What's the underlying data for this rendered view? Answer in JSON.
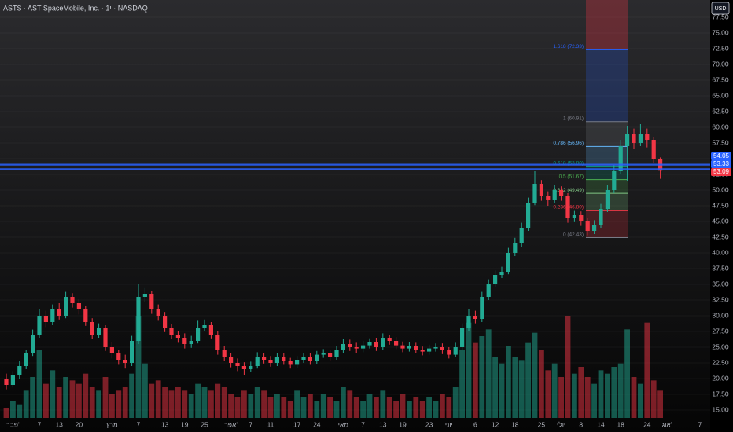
{
  "chart_data": {
    "type": "candlestick",
    "title": "ASTS · AST SpaceMobile, Inc. · 1י · NASDAQ",
    "currency": "USD",
    "up_color": "#22ab94",
    "down_color": "#f23645",
    "open": [
      20,
      19,
      20.5,
      22,
      24,
      27,
      30,
      29,
      31,
      30,
      33,
      32,
      31,
      29,
      27,
      28,
      25,
      24,
      23,
      22.5,
      26,
      33,
      33.5,
      31,
      30,
      28,
      27,
      26.5,
      25.5,
      26,
      28,
      28.5,
      27,
      24.5,
      23.5,
      22.5,
      22,
      21.5,
      22,
      23.5,
      23,
      22.5,
      23.5,
      22.8,
      22.2,
      23,
      23.5,
      22.8,
      23.8,
      24,
      23.5,
      24.5,
      25.5,
      25,
      24.8,
      25.3,
      25.8,
      25,
      26.5,
      26,
      25.3,
      24.8,
      25.2,
      24.6,
      24.3,
      24.8,
      25,
      24.5,
      23.8,
      25,
      28,
      30,
      29.5,
      33,
      35,
      36.5,
      37,
      40,
      41.5,
      44,
      48,
      51,
      49,
      48.5,
      50,
      49,
      45.5,
      46,
      45,
      43.5,
      44.5,
      47,
      50,
      53,
      57,
      59,
      57.5,
      59,
      58,
      55
    ],
    "high": [
      20.8,
      21.2,
      22.8,
      24.6,
      27.8,
      31,
      30.8,
      31.8,
      32,
      33.8,
      33.6,
      32.6,
      31.5,
      29.6,
      28.8,
      28.5,
      25.8,
      24.5,
      23.8,
      26.8,
      35,
      34.4,
      34,
      31.8,
      30.6,
      28.7,
      27.6,
      27.2,
      26.8,
      29.2,
      29.4,
      29,
      27.5,
      25.2,
      24,
      23.2,
      22.6,
      22.7,
      24.2,
      24.1,
      23.6,
      24.1,
      24,
      23.3,
      23.6,
      24.1,
      24,
      24.4,
      24.7,
      24.6,
      25.2,
      26.3,
      26.2,
      25.7,
      26,
      26.4,
      26.5,
      27.2,
      27,
      26.6,
      25.9,
      25.8,
      25.7,
      25.1,
      25.4,
      25.6,
      25.6,
      25,
      25.7,
      28.8,
      31,
      30.8,
      33.8,
      35.8,
      37.2,
      37.8,
      40.8,
      42.4,
      44.8,
      48.8,
      53,
      51.6,
      49.8,
      50.8,
      50.6,
      49.5,
      46.8,
      46.6,
      45.5,
      45.2,
      47.8,
      50.8,
      54,
      58,
      60.2,
      59.8,
      60.5,
      59.8,
      58.4,
      55.2
    ],
    "low": [
      18.3,
      18.6,
      20,
      21.5,
      23.6,
      26.5,
      28.2,
      28.5,
      29.4,
      29.6,
      31.3,
      30.2,
      28.4,
      26.3,
      26.5,
      24.4,
      23.2,
      22.2,
      21.6,
      22,
      25.5,
      32.2,
      30.3,
      29.2,
      27.4,
      26.3,
      25.7,
      24.8,
      24.9,
      25.6,
      27.5,
      26.4,
      23.8,
      22.8,
      21.8,
      21.2,
      20.6,
      21,
      21.6,
      22.4,
      21.9,
      22,
      22.2,
      21.6,
      21.7,
      22.5,
      22.2,
      22.3,
      23.3,
      22.9,
      23,
      24,
      24.4,
      24.1,
      24.2,
      24.8,
      24.4,
      24.6,
      25.4,
      24.7,
      24.2,
      24.3,
      24,
      23.7,
      23.8,
      24.3,
      23.9,
      23.2,
      23.4,
      24.6,
      27.5,
      28.8,
      29,
      32.5,
      34.6,
      36,
      36.6,
      39.5,
      41,
      43.5,
      47.6,
      48.3,
      47.5,
      47.9,
      48.3,
      44.8,
      44.9,
      44.3,
      42.8,
      43,
      44,
      46.5,
      49.5,
      52.5,
      51.5,
      56.5,
      57,
      56.8,
      54.3,
      51.8
    ],
    "close": [
      19,
      20.5,
      22,
      24,
      27,
      30,
      29,
      31,
      30,
      33,
      32,
      31,
      29,
      27,
      28,
      25,
      24,
      23,
      22.5,
      26,
      33,
      33.5,
      31,
      30,
      28,
      27,
      26.5,
      25.5,
      26,
      28,
      28.5,
      27,
      24.5,
      23.5,
      22.5,
      22,
      21.5,
      22,
      23.5,
      23,
      22.5,
      23.5,
      22.8,
      22.2,
      23,
      23.5,
      22.8,
      23.8,
      24,
      23.5,
      24.5,
      25.5,
      25,
      24.8,
      25.3,
      25.8,
      25,
      26.5,
      26,
      25.3,
      24.8,
      25.2,
      24.6,
      24.3,
      24.8,
      25,
      24.5,
      23.8,
      25,
      28,
      30,
      29.5,
      33,
      35,
      36.5,
      37,
      40,
      41.5,
      44,
      48,
      51,
      49,
      48.5,
      50,
      49,
      45.5,
      46,
      45,
      43.5,
      44.5,
      47,
      50,
      53,
      57,
      59,
      57.5,
      59,
      58,
      55,
      53.09
    ],
    "volume": [
      3,
      5,
      4,
      8,
      12,
      20,
      10,
      14,
      9,
      12,
      11,
      10,
      13,
      9,
      8,
      12,
      7,
      8,
      9,
      13,
      30,
      16,
      10,
      11,
      9,
      8,
      9,
      8,
      7,
      10,
      9,
      8,
      10,
      9,
      7,
      6,
      8,
      7,
      9,
      8,
      6,
      7,
      6,
      5,
      8,
      6,
      7,
      5,
      7,
      6,
      5,
      9,
      8,
      6,
      5,
      7,
      6,
      8,
      6,
      5,
      7,
      5,
      6,
      5,
      6,
      5,
      7,
      6,
      9,
      20,
      28,
      22,
      24,
      26,
      18,
      16,
      21,
      18,
      17,
      22,
      25,
      20,
      14,
      16,
      12,
      30,
      13,
      15,
      12,
      10,
      14,
      13,
      15,
      16,
      26,
      12,
      10,
      28,
      11,
      8
    ],
    "xticks": [
      {
        "value": 1,
        "label": "פבר'"
      },
      {
        "value": 5,
        "label": "7"
      },
      {
        "value": 8,
        "label": "13"
      },
      {
        "value": 11,
        "label": "20"
      },
      {
        "value": 16,
        "label": "מרץ"
      },
      {
        "value": 20,
        "label": "7"
      },
      {
        "value": 24,
        "label": "13"
      },
      {
        "value": 27,
        "label": "19"
      },
      {
        "value": 30,
        "label": "25"
      },
      {
        "value": 34,
        "label": "אפר'"
      },
      {
        "value": 37,
        "label": "7"
      },
      {
        "value": 40,
        "label": "11"
      },
      {
        "value": 44,
        "label": "17"
      },
      {
        "value": 47,
        "label": "24"
      },
      {
        "value": 51,
        "label": "מאי"
      },
      {
        "value": 54,
        "label": "7"
      },
      {
        "value": 57,
        "label": "13"
      },
      {
        "value": 60,
        "label": "19"
      },
      {
        "value": 64,
        "label": "23"
      },
      {
        "value": 67,
        "label": "יוני"
      },
      {
        "value": 71,
        "label": "6"
      },
      {
        "value": 74,
        "label": "12"
      },
      {
        "value": 77,
        "label": "18"
      },
      {
        "value": 81,
        "label": "25"
      },
      {
        "value": 84,
        "label": "יולי"
      },
      {
        "value": 87,
        "label": "8"
      },
      {
        "value": 90,
        "label": "14"
      },
      {
        "value": 93,
        "label": "18"
      },
      {
        "value": 97,
        "label": "24"
      },
      {
        "value": 100,
        "label": "אוג'"
      },
      {
        "value": 105,
        "label": "7"
      }
    ],
    "ylim": [
      15,
      77.5
    ],
    "yticks": [
      {
        "value": 15,
        "label": "15.00"
      },
      {
        "value": 17.5,
        "label": "17.50"
      },
      {
        "value": 20,
        "label": "20.00"
      },
      {
        "value": 22.5,
        "label": "22.50"
      },
      {
        "value": 25,
        "label": "25.00"
      },
      {
        "value": 27.5,
        "label": "27.50"
      },
      {
        "value": 30,
        "label": "30.00"
      },
      {
        "value": 32.5,
        "label": "32.50"
      },
      {
        "value": 35,
        "label": "35.00"
      },
      {
        "value": 37.5,
        "label": "37.50"
      },
      {
        "value": 40,
        "label": "40.00"
      },
      {
        "value": 42.5,
        "label": "42.50"
      },
      {
        "value": 45,
        "label": "45.00"
      },
      {
        "value": 47.5,
        "label": "47.50"
      },
      {
        "value": 50,
        "label": "50.00"
      },
      {
        "value": 52.5,
        "label": "52.50"
      },
      {
        "value": 55,
        "label": "55.00"
      },
      {
        "value": 57.5,
        "label": "57.50"
      },
      {
        "value": 60,
        "label": "60.00"
      },
      {
        "value": 62.5,
        "label": "62.50"
      },
      {
        "value": 65,
        "label": "65.00"
      },
      {
        "value": 67.5,
        "label": "67.50"
      },
      {
        "value": 70,
        "label": "70.00"
      },
      {
        "value": 72.5,
        "label": "72.50"
      },
      {
        "value": 75,
        "label": "75.00"
      },
      {
        "value": 77.5,
        "label": "77.50"
      }
    ],
    "grid": true,
    "fib_levels": [
      {
        "price": 72.33,
        "label": "1.618 (72.33)",
        "color": "#2962ff"
      },
      {
        "price": 60.91,
        "label": "1 (60.91)",
        "color": "#787b86"
      },
      {
        "price": 56.96,
        "label": "0.786 (56.96)",
        "color": "#64b5f6"
      },
      {
        "price": 53.8,
        "label": "0.618 (53.80)",
        "color": "#089981"
      },
      {
        "price": 51.67,
        "label": "0.5 (51.67)",
        "color": "#4caf50"
      },
      {
        "price": 49.49,
        "label": "0.382 (49.49)",
        "color": "#81c784"
      },
      {
        "price": 46.8,
        "label": "0.236 (46.80)",
        "color": "#f23645"
      },
      {
        "price": 42.43,
        "label": "0 (42.43)",
        "color": "#787b86"
      }
    ],
    "price_labels": [
      {
        "value": 54.05,
        "color": "#2962ff",
        "line": true
      },
      {
        "value": 53.33,
        "color": "#2962ff",
        "line": true
      },
      {
        "value": 53.09,
        "color": "#f23645",
        "line": false
      }
    ]
  }
}
